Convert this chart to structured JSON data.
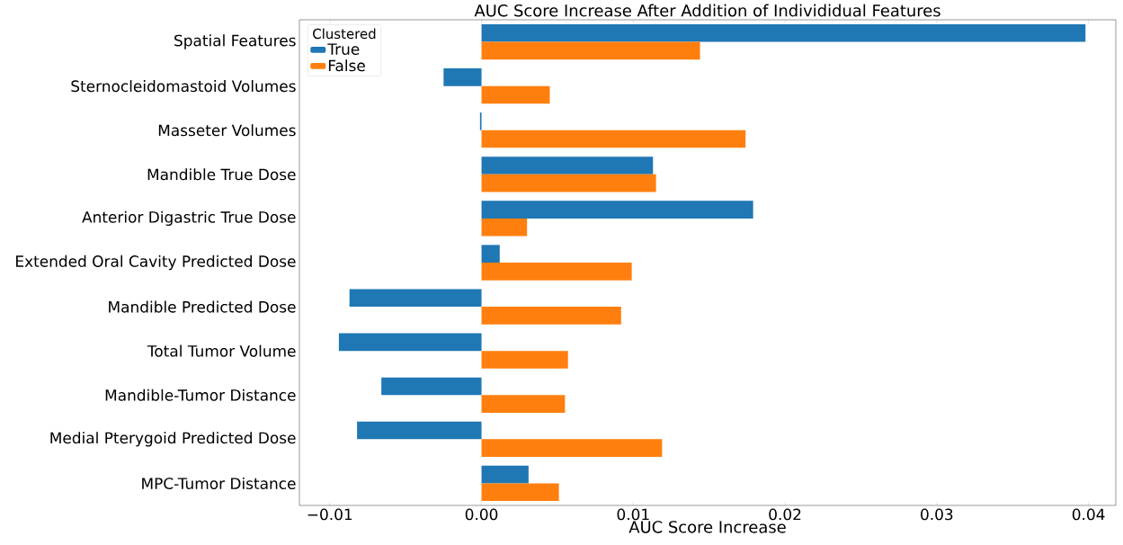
{
  "chart_data": {
    "type": "bar",
    "orientation": "horizontal",
    "title": "AUC Score Increase After Addition of Individidual Features",
    "xlabel": "AUC Score Increase",
    "legend_title": "Clustered",
    "legend": "top left",
    "categories": [
      "Spatial Features",
      "Sternocleidomastoid Volumes",
      "Masseter Volumes",
      "Mandible True Dose",
      "Anterior Digastric True Dose",
      "Extended Oral Cavity Predicted Dose",
      "Mandible Predicted Dose",
      "Total Tumor Volume",
      "Mandible-Tumor Distance",
      "Medial Pterygoid Predicted Dose",
      "MPC-Tumor Distance"
    ],
    "series": [
      {
        "name": "True",
        "color": "#1f77b4",
        "values": [
          0.0398,
          -0.0025,
          -0.0001,
          0.0113,
          0.0179,
          0.0012,
          -0.0087,
          -0.0094,
          -0.0066,
          -0.0082,
          0.0031
        ]
      },
      {
        "name": "False",
        "color": "#ff7f0e",
        "values": [
          0.0144,
          0.0045,
          0.0174,
          0.0115,
          0.003,
          0.0099,
          0.0092,
          0.0057,
          0.0055,
          0.0119,
          0.0051
        ]
      }
    ],
    "xlim": [
      -0.012,
      0.0418
    ],
    "xticks": [
      {
        "value": -0.01,
        "label": "−0.01"
      },
      {
        "value": 0,
        "label": "0.00"
      },
      {
        "value": 0.01,
        "label": "0.01"
      },
      {
        "value": 0.02,
        "label": "0.02"
      },
      {
        "value": 0.03,
        "label": "0.03"
      },
      {
        "value": 0.04,
        "label": "0.04"
      }
    ]
  }
}
